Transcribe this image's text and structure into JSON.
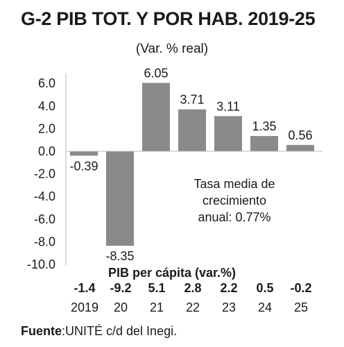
{
  "header": {
    "title": "G-2 PIB TOT. Y POR HAB. 2019-25",
    "subtitle": "(Var. % real)"
  },
  "chart_data": {
    "type": "bar",
    "categories": [
      "2019",
      "20",
      "21",
      "22",
      "23",
      "24",
      "25"
    ],
    "values": [
      -0.39,
      -8.35,
      6.05,
      3.71,
      3.11,
      1.35,
      0.56
    ],
    "data_labels": [
      "-0.39",
      "-8.35",
      "6.05",
      "3.71",
      "3.11",
      "1.35",
      "0.56"
    ],
    "yticks": [
      "6.0",
      "4.0",
      "2.0",
      "0.0",
      "-2.0",
      "-4.0",
      "-6.0",
      "-8.0",
      "-10.0"
    ],
    "ylim": [
      -10,
      7
    ],
    "bar_color": "#8a8a8a",
    "grid": false
  },
  "note": {
    "line1": "Tasa media de",
    "line2": "crecimiento",
    "line3": "anual: 0.77%"
  },
  "per_capita": {
    "title": "PIB per cápita (var.%)",
    "values": [
      "-1.4",
      "-9.2",
      "5.1",
      "2.8",
      "2.2",
      "0.5",
      "-0.2"
    ]
  },
  "source": {
    "label": "Fuente",
    "text": ":UNITÉ c/d del Inegi."
  }
}
